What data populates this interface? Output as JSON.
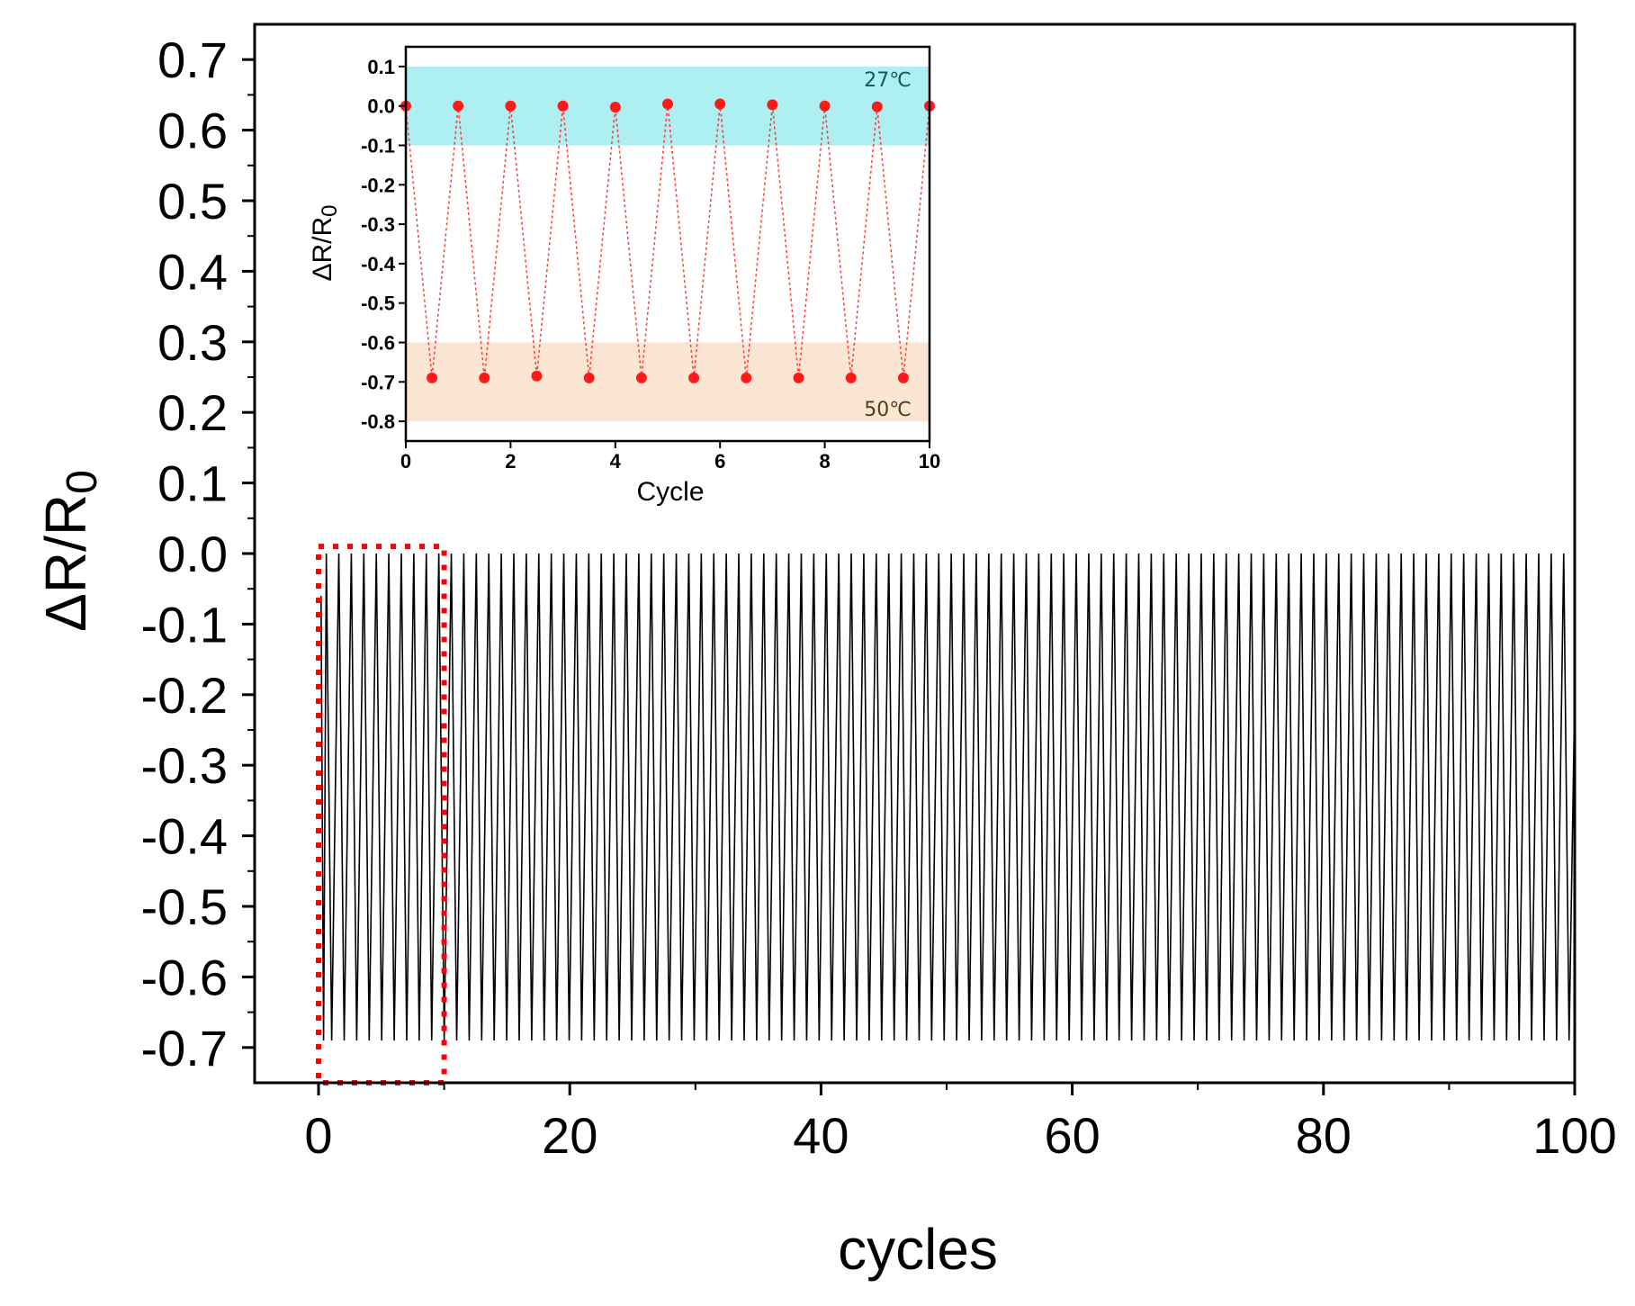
{
  "chart_data": [
    {
      "name": "main",
      "type": "line",
      "title": "",
      "xlabel": "cycles",
      "ylabel_parts": {
        "main": "ΔR/R",
        "sub": "0"
      },
      "xlim": [
        0,
        100
      ],
      "ylim": [
        -0.75,
        0.75
      ],
      "xticks": [
        0,
        20,
        40,
        60,
        80,
        100
      ],
      "xtick_labels": [
        "0",
        "20",
        "40",
        "60",
        "80",
        "100"
      ],
      "yticks": [
        0.7,
        0.6,
        0.5,
        0.4,
        0.3,
        0.2,
        0.1,
        0.0,
        -0.1,
        -0.2,
        -0.3,
        -0.4,
        -0.5,
        -0.6,
        -0.7
      ],
      "ytick_labels": [
        "0.7",
        "0.6",
        "0.5",
        "0.4",
        "0.3",
        "0.2",
        "0.1",
        "0.0",
        "-0.1",
        "-0.2",
        "-0.3",
        "-0.4",
        "-0.5",
        "-0.6",
        "-0.7"
      ],
      "series": [
        {
          "name": "ΔR/R0",
          "color": "#000000",
          "pattern": "square-wave",
          "cycles": 100,
          "high": 0.0,
          "low": -0.69,
          "start_x": 0.5,
          "end_x": 100
        }
      ],
      "highlight_box": {
        "x_range": [
          0,
          10
        ],
        "y_range": [
          -0.75,
          0.01
        ],
        "color": "#ff0000",
        "style": "dotted"
      }
    },
    {
      "name": "inset",
      "type": "line",
      "xlabel": "Cycle",
      "ylabel_parts": {
        "main": "ΔR/R",
        "sub": "0"
      },
      "xlim": [
        0,
        10
      ],
      "ylim": [
        -0.85,
        0.15
      ],
      "xticks": [
        0,
        2,
        4,
        6,
        8,
        10
      ],
      "xtick_labels": [
        "0",
        "2",
        "4",
        "6",
        "8",
        "10"
      ],
      "yticks": [
        0.1,
        0.0,
        -0.1,
        -0.2,
        -0.3,
        -0.4,
        -0.5,
        -0.6,
        -0.7,
        -0.8
      ],
      "ytick_labels": [
        "0.1",
        "0.0",
        "-0.1",
        "-0.2",
        "-0.3",
        "-0.4",
        "-0.5",
        "-0.6",
        "-0.7",
        "-0.8"
      ],
      "bands": [
        {
          "y_range": [
            -0.1,
            0.1
          ],
          "color": "#aeeff2",
          "label": "27℃",
          "label_color": "#0b5f5a"
        },
        {
          "y_range": [
            -0.8,
            -0.6
          ],
          "color": "#fbe6d4",
          "label": "50℃",
          "label_color": "#5a3a1a"
        }
      ],
      "series": [
        {
          "name": "ΔR/R0",
          "color": "#ff1a1a",
          "x": [
            0,
            0.5,
            1,
            1.5,
            2,
            2.5,
            3,
            3.5,
            4,
            4.5,
            5,
            5.5,
            6,
            6.5,
            7,
            7.5,
            8,
            8.5,
            9,
            9.5,
            10
          ],
          "y": [
            0.0,
            -0.69,
            0.0,
            -0.69,
            0.0,
            -0.685,
            0.0,
            -0.69,
            -0.003,
            -0.69,
            0.005,
            -0.69,
            0.005,
            -0.69,
            0.003,
            -0.69,
            0.0,
            -0.69,
            -0.002,
            -0.69,
            0.0
          ]
        }
      ]
    }
  ]
}
